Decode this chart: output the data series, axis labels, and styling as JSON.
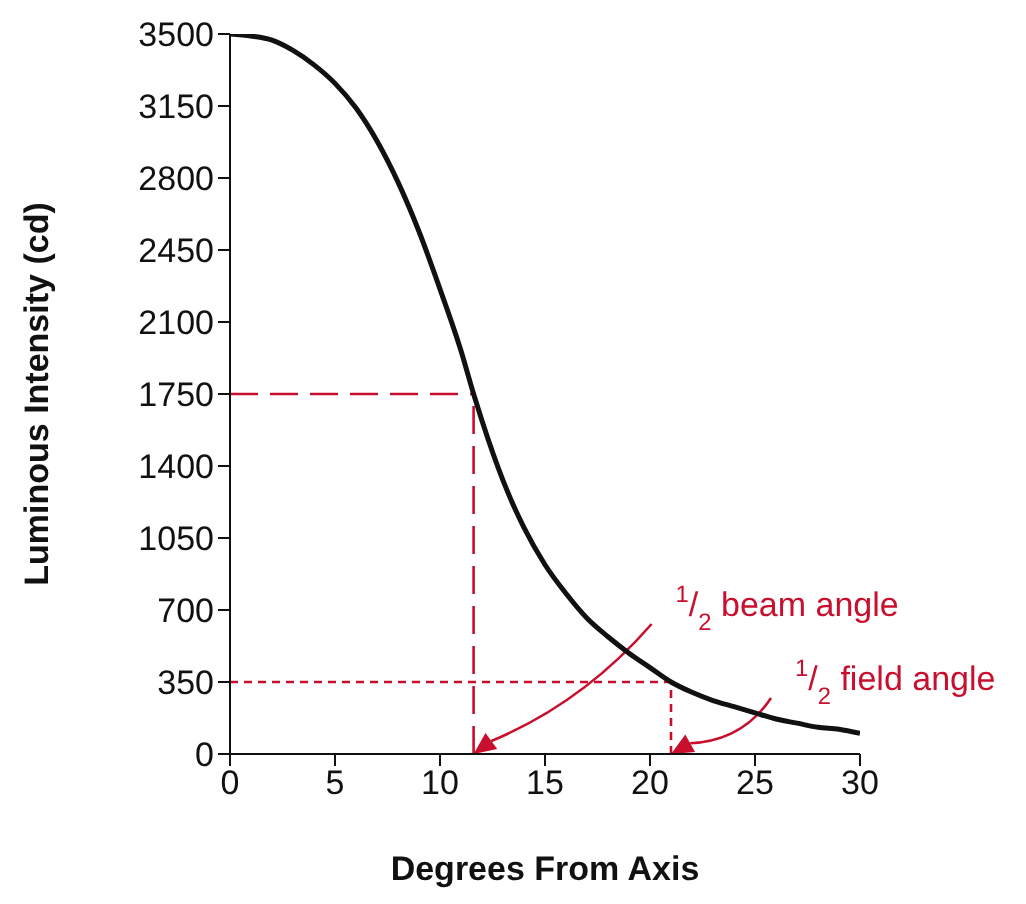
{
  "chart_data": {
    "type": "line",
    "xlabel": "Degrees From Axis",
    "ylabel": "Luminous Intensity (cd)",
    "x": [
      0,
      1,
      2,
      3,
      4,
      5,
      6,
      7,
      8,
      9,
      10,
      11,
      11.6,
      12,
      13,
      14,
      15,
      16,
      17,
      18,
      19,
      20,
      21,
      22,
      23,
      24,
      25,
      26,
      27,
      28,
      29,
      30
    ],
    "series": [
      {
        "color": "#111111",
        "values": [
          3500,
          3490,
          3470,
          3420,
          3350,
          3260,
          3140,
          2980,
          2780,
          2540,
          2260,
          1960,
          1750,
          1620,
          1330,
          1100,
          920,
          780,
          660,
          570,
          490,
          420,
          350,
          300,
          260,
          230,
          200,
          170,
          150,
          130,
          120,
          100
        ]
      }
    ],
    "xlim": [
      0,
      30
    ],
    "xticks": [
      0,
      5,
      10,
      15,
      20,
      25,
      30
    ],
    "ylim": [
      0,
      3500
    ],
    "yticks": [
      0,
      350,
      700,
      1050,
      1400,
      1750,
      2100,
      2450,
      2800,
      3150,
      3500
    ],
    "grid": false,
    "legend": false,
    "marker": "none",
    "line_style": "solid",
    "ref_lines": [
      {
        "axis": "y",
        "value": 1750,
        "color": "#c8102e",
        "line_style": "dashed"
      },
      {
        "axis": "x",
        "value": 11.6,
        "color": "#c8102e",
        "line_style": "dashed"
      },
      {
        "axis": "y",
        "value": 350,
        "color": "#c8102e",
        "line_style": "dotted"
      },
      {
        "axis": "x",
        "value": 21,
        "color": "#c8102e",
        "line_style": "dotted"
      }
    ],
    "annotations": [
      "$^{1}$/$_{2}$ beam angle",
      "$^{1}$/$_{2}$ field angle"
    ]
  }
}
